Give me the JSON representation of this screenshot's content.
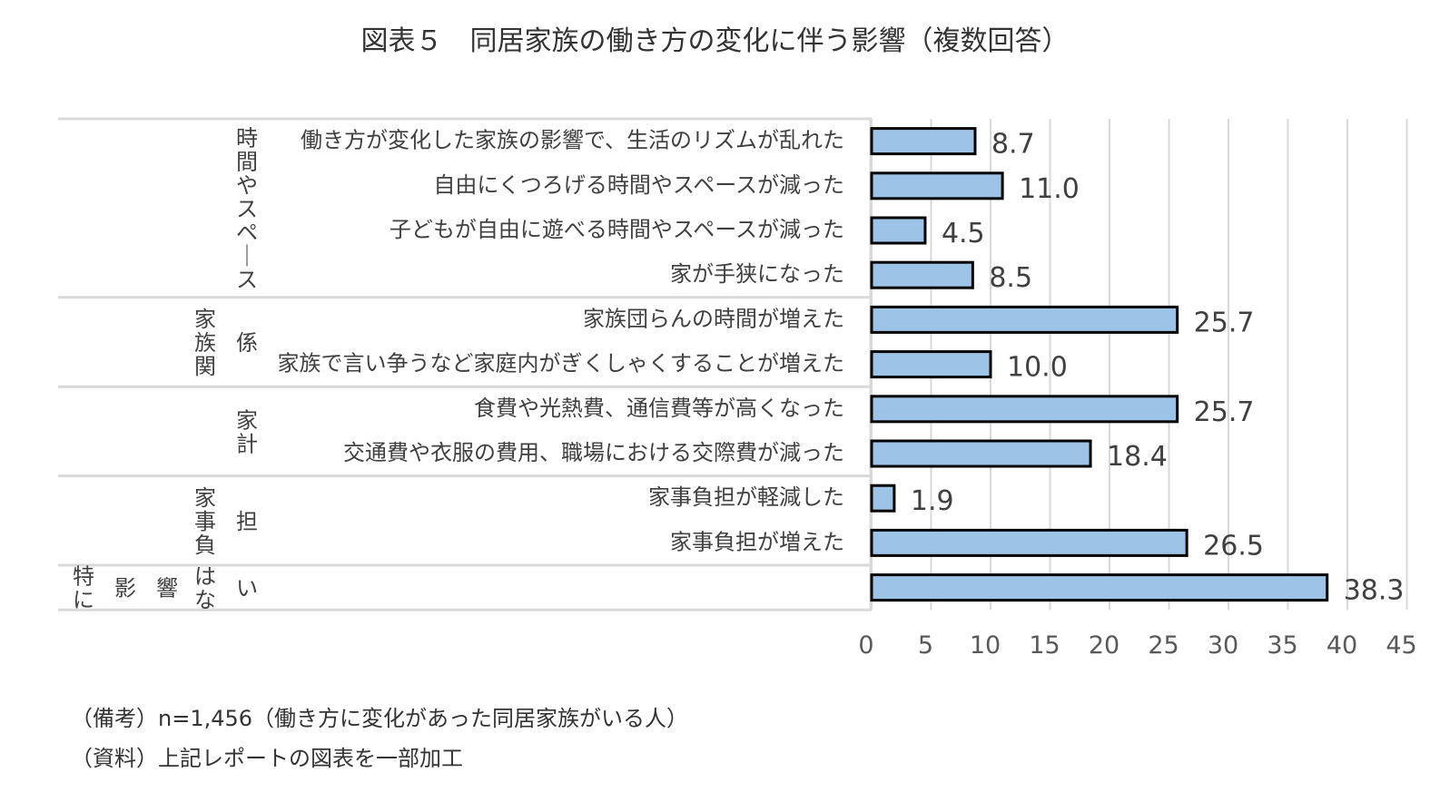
{
  "chart_data": {
    "type": "bar",
    "orientation": "horizontal",
    "title": "図表５　同居家族の働き方の変化に伴う影響（複数回答）",
    "categories": [
      "働き方が変化した家族の影響で、生活のリズムが乱れた",
      "自由にくつろげる時間やスペースが減った",
      "子どもが自由に遊べる時間やスペースが減った",
      "家が手狭になった",
      "家族団らんの時間が増えた",
      "家族で言い争うなど家庭内がぎくしゃくすることが増えた",
      "食費や光熱費、通信費等が高くなった",
      "交通費や衣服の費用、職場における交際費が減った",
      "家事負担が軽減した",
      "家事負担が増えた",
      ""
    ],
    "values": [
      8.7,
      11.0,
      4.5,
      8.5,
      25.7,
      10.0,
      25.7,
      18.4,
      1.9,
      26.5,
      38.3
    ],
    "value_labels": [
      "8.7",
      "11.0",
      "4.5",
      "8.5",
      "25.7",
      "10.0",
      "25.7",
      "18.4",
      "1.9",
      "26.5",
      "38.3"
    ],
    "groups": [
      {
        "label_col1": "",
        "label_col2": "時間やスペース",
        "start": 0,
        "count": 4
      },
      {
        "label_col1": "家族関",
        "label_col2": "係",
        "start": 4,
        "count": 2
      },
      {
        "label_col1": "",
        "label_col2": "家計",
        "start": 6,
        "count": 2
      },
      {
        "label_col1": "家事負",
        "label_col2": "担",
        "start": 8,
        "count": 2
      },
      {
        "label_col1": "",
        "label_col2": "",
        "start": 10,
        "count": 1,
        "spread_label": [
          "特に",
          "影",
          "響",
          "はな",
          "い"
        ]
      }
    ],
    "xlim": [
      0,
      45
    ],
    "xticks": [
      0,
      5,
      10,
      15,
      20,
      25,
      30,
      35,
      40,
      45
    ],
    "grid": true,
    "bar_color": "#9dc3e6",
    "bar_edge_color": "#000000"
  },
  "notes": {
    "note1": "（備考）n=1,456（働き方に変化があった同居家族がいる人）",
    "note2": "（資料）上記レポートの図表を一部加工"
  }
}
